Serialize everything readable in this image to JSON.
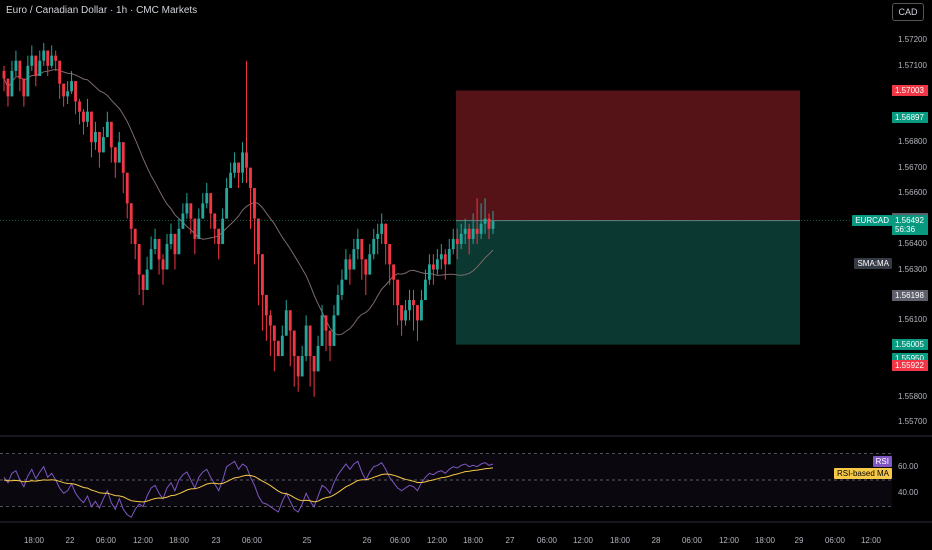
{
  "header": {
    "title": "Euro / Canadian Dollar · 1h · CMC Markets",
    "currency_button": "CAD"
  },
  "colors": {
    "up": "#26a69a",
    "down": "#f23645",
    "sma": "#7b6a6a",
    "rsi": "#7e57c2",
    "rsi_ma": "#f7c948",
    "stop_zone": "#5a1419",
    "target_zone": "#0c3b33",
    "background": "#000000"
  },
  "chart_data": {
    "type": "candlestick",
    "symbol": "EURCAD",
    "timeframe": "1h",
    "ylim": [
      1.5565,
      1.5728
    ],
    "y_ticks": [
      "1.57200",
      "1.57100",
      "1.56900",
      "1.56800",
      "1.56700",
      "1.56600",
      "1.56500",
      "1.56400",
      "1.56300",
      "1.56100",
      "1.55800",
      "1.55700"
    ],
    "x_ticks": [
      "18:00",
      "22",
      "06:00",
      "12:00",
      "18:00",
      "23",
      "06:00",
      "25",
      "26",
      "06:00",
      "12:00",
      "18:00",
      "27",
      "06:00",
      "12:00",
      "18:00",
      "28",
      "06:00",
      "12:00",
      "18:00",
      "29",
      "06:00",
      "12:00"
    ],
    "closes": [
      1.5705,
      1.5698,
      1.5708,
      1.5712,
      1.5705,
      1.5698,
      1.571,
      1.5714,
      1.5706,
      1.5712,
      1.5716,
      1.571,
      1.5714,
      1.5712,
      1.5703,
      1.5698,
      1.57,
      1.5704,
      1.5696,
      1.5692,
      1.5688,
      1.5692,
      1.568,
      1.5684,
      1.5676,
      1.5682,
      1.5688,
      1.5678,
      1.5672,
      1.568,
      1.5668,
      1.5656,
      1.5646,
      1.564,
      1.5628,
      1.5622,
      1.563,
      1.5638,
      1.5642,
      1.5634,
      1.563,
      1.564,
      1.5644,
      1.5636,
      1.5646,
      1.5652,
      1.5656,
      1.565,
      1.5642,
      1.565,
      1.5656,
      1.566,
      1.5652,
      1.5646,
      1.564,
      1.565,
      1.5662,
      1.5668,
      1.5672,
      1.5668,
      1.5676,
      1.567,
      1.5662,
      1.565,
      1.5636,
      1.562,
      1.5612,
      1.5608,
      1.5602,
      1.5596,
      1.5604,
      1.5614,
      1.5606,
      1.5596,
      1.5588,
      1.5596,
      1.5608,
      1.5596,
      1.559,
      1.56,
      1.5612,
      1.5606,
      1.56,
      1.5612,
      1.562,
      1.5626,
      1.5634,
      1.563,
      1.5638,
      1.5642,
      1.5634,
      1.5628,
      1.5636,
      1.5642,
      1.5644,
      1.5648,
      1.564,
      1.5632,
      1.5626,
      1.5616,
      1.561,
      1.5614,
      1.5618,
      1.5616,
      1.561,
      1.5618,
      1.5626,
      1.5632,
      1.563,
      1.5634,
      1.5636,
      1.5632,
      1.5638,
      1.5642,
      1.564,
      1.5644,
      1.5646,
      1.5642,
      1.5646,
      1.5644,
      1.5648,
      1.565,
      1.5646,
      1.5649
    ],
    "highs": [
      1.571,
      1.5704,
      1.5712,
      1.5716,
      1.571,
      1.5704,
      1.5714,
      1.5718,
      1.5712,
      1.5716,
      1.5719,
      1.5714,
      1.5718,
      1.5716,
      1.5708,
      1.5703,
      1.5704,
      1.5708,
      1.5702,
      1.5697,
      1.5693,
      1.5697,
      1.5686,
      1.5688,
      1.5682,
      1.5686,
      1.5692,
      1.5684,
      1.5677,
      1.5684,
      1.5674,
      1.5662,
      1.5652,
      1.5646,
      1.5634,
      1.5628,
      1.5635,
      1.5643,
      1.5646,
      1.564,
      1.5636,
      1.5644,
      1.5648,
      1.5642,
      1.565,
      1.5656,
      1.566,
      1.5656,
      1.5648,
      1.5654,
      1.566,
      1.5664,
      1.5658,
      1.5652,
      1.5645,
      1.5654,
      1.5666,
      1.5672,
      1.5676,
      1.5672,
      1.568,
      1.5712,
      1.5668,
      1.5656,
      1.5642,
      1.5626,
      1.5618,
      1.5614,
      1.5608,
      1.5602,
      1.5608,
      1.5618,
      1.5612,
      1.5602,
      1.5594,
      1.56,
      1.5612,
      1.5602,
      1.5596,
      1.5604,
      1.5616,
      1.5612,
      1.5606,
      1.5616,
      1.5624,
      1.563,
      1.5638,
      1.5636,
      1.5642,
      1.5646,
      1.564,
      1.5634,
      1.564,
      1.5646,
      1.5648,
      1.5652,
      1.5646,
      1.5638,
      1.5632,
      1.5622,
      1.5616,
      1.5618,
      1.5622,
      1.5622,
      1.5616,
      1.5622,
      1.563,
      1.5636,
      1.5636,
      1.5638,
      1.564,
      1.5638,
      1.5642,
      1.5646,
      1.5646,
      1.5648,
      1.565,
      1.5648,
      1.5652,
      1.5658,
      1.5656,
      1.5658,
      1.5652,
      1.5653
    ],
    "lows": [
      1.57,
      1.5694,
      1.5703,
      1.5706,
      1.57,
      1.5694,
      1.5706,
      1.5708,
      1.5702,
      1.5706,
      1.571,
      1.5706,
      1.5709,
      1.5708,
      1.5697,
      1.5694,
      1.5695,
      1.5699,
      1.5691,
      1.5687,
      1.5683,
      1.5686,
      1.5674,
      1.5677,
      1.567,
      1.5676,
      1.5682,
      1.5672,
      1.5666,
      1.5674,
      1.566,
      1.565,
      1.564,
      1.5634,
      1.562,
      1.5616,
      1.5624,
      1.5632,
      1.5636,
      1.5628,
      1.5624,
      1.5634,
      1.5638,
      1.563,
      1.564,
      1.5646,
      1.565,
      1.5644,
      1.5636,
      1.5643,
      1.565,
      1.5654,
      1.5646,
      1.564,
      1.5634,
      1.5644,
      1.5656,
      1.5662,
      1.5666,
      1.5662,
      1.5664,
      1.5664,
      1.5646,
      1.5632,
      1.5616,
      1.5606,
      1.5602,
      1.5596,
      1.559,
      1.5596,
      1.5598,
      1.5604,
      1.5592,
      1.5584,
      1.5582,
      1.5588,
      1.5594,
      1.5584,
      1.558,
      1.559,
      1.56,
      1.5598,
      1.5594,
      1.5604,
      1.5612,
      1.5618,
      1.5626,
      1.5624,
      1.563,
      1.5634,
      1.5626,
      1.562,
      1.5628,
      1.5634,
      1.5636,
      1.564,
      1.5632,
      1.5624,
      1.5616,
      1.5608,
      1.5604,
      1.5608,
      1.561,
      1.5606,
      1.5602,
      1.561,
      1.5618,
      1.5624,
      1.5624,
      1.5628,
      1.563,
      1.5626,
      1.5632,
      1.5636,
      1.5634,
      1.5638,
      1.564,
      1.5636,
      1.564,
      1.564,
      1.5642,
      1.5644,
      1.5642,
      1.5644
    ],
    "position": {
      "stop": 1.57003,
      "entry": 1.56492,
      "target": 1.56005
    },
    "price_labels": [
      {
        "text": "1.57003",
        "price": 1.57003,
        "color": "#f23645"
      },
      {
        "text": "1.56897",
        "price": 1.56897,
        "color": "#089981"
      },
      {
        "text": "1.56500",
        "price": 1.565,
        "color": "#5d606b"
      },
      {
        "text": "1.56492",
        "price": 1.56492,
        "color": "#089981"
      },
      {
        "text": "56:36",
        "price": 1.56456,
        "color": "#089981"
      },
      {
        "text": "1.56198",
        "price": 1.56198,
        "color": "#5d606b"
      },
      {
        "text": "1.56005",
        "price": 1.56005,
        "color": "#089981"
      },
      {
        "text": "1.55950",
        "price": 1.5595,
        "color": "#089981"
      },
      {
        "text": "1.55922",
        "price": 1.55922,
        "color": "#f23645"
      }
    ],
    "left_labels": [
      {
        "text": "EURCAD",
        "price": 1.56492,
        "color": "#089981"
      },
      {
        "text": "SMA:MA",
        "price": 1.56325,
        "color": "#363a45"
      }
    ],
    "rsi": {
      "ylim": [
        20,
        80
      ],
      "ticks": [
        "60.00",
        "40.00"
      ],
      "levels": [
        70,
        50,
        30
      ],
      "labels": {
        "rsi": "RSI",
        "rsi_ma": "RSI-based MA"
      },
      "values": [
        52,
        48,
        55,
        57,
        50,
        45,
        53,
        58,
        51,
        56,
        60,
        52,
        55,
        50,
        44,
        40,
        42,
        47,
        40,
        36,
        33,
        38,
        30,
        34,
        29,
        36,
        42,
        33,
        28,
        36,
        28,
        24,
        22,
        28,
        32,
        30,
        38,
        44,
        46,
        40,
        36,
        44,
        48,
        42,
        50,
        54,
        56,
        50,
        44,
        52,
        56,
        58,
        52,
        47,
        42,
        50,
        60,
        62,
        64,
        58,
        62,
        60,
        52,
        46,
        38,
        33,
        32,
        30,
        28,
        26,
        34,
        40,
        34,
        28,
        26,
        32,
        40,
        34,
        30,
        38,
        46,
        44,
        40,
        48,
        54,
        58,
        62,
        58,
        62,
        64,
        56,
        50,
        56,
        60,
        61,
        63,
        58,
        52,
        48,
        44,
        42,
        44,
        46,
        45,
        42,
        48,
        52,
        55,
        54,
        56,
        57,
        55,
        58,
        60,
        59,
        61,
        62,
        60,
        61,
        60,
        62,
        63,
        61,
        62
      ],
      "ma": [
        50,
        49.5,
        49.4,
        49.7,
        49.3,
        48.6,
        48.9,
        49.4,
        49.2,
        49.6,
        50.1,
        49.9,
        50.2,
        49.8,
        49,
        48,
        47.4,
        47.3,
        46.7,
        45.6,
        44.4,
        43.9,
        42.4,
        41.6,
        40.4,
        40,
        40.2,
        39.3,
        38.3,
        38.1,
        37.3,
        35.9,
        34.5,
        34,
        33.8,
        33.5,
        34.2,
        35.2,
        36.1,
        36.5,
        36.4,
        37.2,
        38.3,
        38.6,
        39.7,
        41,
        42.5,
        43.3,
        43.4,
        44.2,
        45.6,
        47,
        47.5,
        47.5,
        47.1,
        47.4,
        48.7,
        50.2,
        51.6,
        52,
        52.9,
        53.6,
        53.4,
        52.6,
        51,
        49.2,
        47.6,
        45.8,
        43.8,
        41.6,
        40.2,
        39.8,
        38.6,
        36.8,
        35.2,
        34.4,
        34.8,
        34.4,
        33.6,
        34.1,
        35.8,
        36.8,
        37.3,
        38.8,
        40.7,
        42.7,
        44.9,
        46.3,
        48,
        49.6,
        50.2,
        50.2,
        50.9,
        52,
        53,
        54.1,
        54.5,
        54.2,
        53.6,
        52.6,
        51.4,
        50.5,
        49.8,
        49.1,
        48.1,
        48.1,
        48.6,
        49.5,
        50.1,
        50.9,
        51.7,
        52.1,
        52.9,
        53.8,
        54.5,
        55.4,
        56.3,
        56.6,
        57.1,
        57.4,
        57.9,
        58.5,
        58.7,
        59.1
      ]
    }
  }
}
